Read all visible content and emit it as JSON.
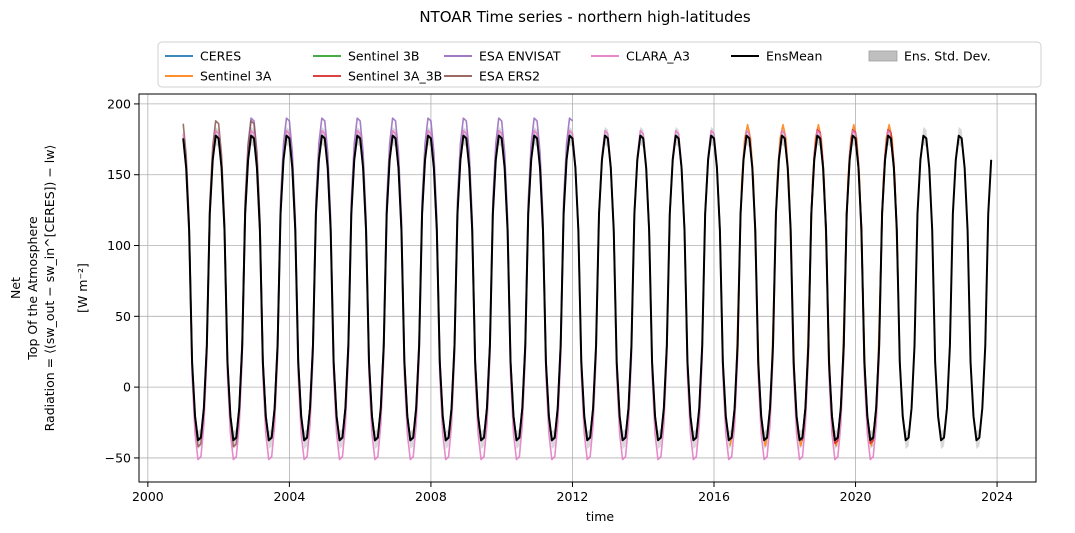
{
  "chart_data": {
    "type": "line",
    "title": "NTOAR Time series - northern high-latitudes",
    "xlabel": "time",
    "ylabel_lines": [
      "Net",
      "Top Of the Atmosphere",
      "Radiation = ⟨(sw_out − sw_in^[CERES]) − lw⟩",
      "[W m⁻²]"
    ],
    "xlim": [
      1999.75,
      2025.1
    ],
    "ylim": [
      -67,
      207
    ],
    "x_ticks": [
      2000,
      2004,
      2008,
      2012,
      2016,
      2020,
      2024
    ],
    "x_tick_labels": [
      "2000",
      "2004",
      "2008",
      "2012",
      "2016",
      "2020",
      "2024"
    ],
    "y_ticks": [
      -50,
      0,
      50,
      100,
      150,
      200
    ],
    "y_tick_labels": [
      "−50",
      "0",
      "50",
      "100",
      "150",
      "200"
    ],
    "grid": true,
    "legend_position": "top-center",
    "legend_columns": 6,
    "model": {
      "description": "Monthly seasonal cycle, peak ~Dec, trough ~Jun",
      "start_year": 2001.0,
      "end_year": 2023.9,
      "phase_year": 2000.95,
      "mean_value": 70,
      "amplitude_value": 109,
      "shape_exponent": 1.6
    },
    "series": [
      {
        "name": "CERES",
        "color": "#1f77b4",
        "start": 2001.0,
        "end": 2021.45,
        "offset": 0.5,
        "amp_scale": 1.0
      },
      {
        "name": "Sentinel 3A",
        "color": "#ff7f0e",
        "start": 2016.45,
        "end": 2021.2,
        "offset": 2,
        "amp_scale": 1.04
      },
      {
        "name": "Sentinel 3B",
        "color": "#2ca02c",
        "start": 2018.5,
        "end": 2021.2,
        "offset": 0,
        "amp_scale": 1.0
      },
      {
        "name": "Sentinel 3A_3B",
        "color": "#d62728",
        "start": 2018.5,
        "end": 2021.2,
        "offset": 1,
        "amp_scale": 1.03
      },
      {
        "name": "ESA ENVISAT",
        "color": "#9467bd",
        "start": 2002.5,
        "end": 2012.0,
        "offset": 6,
        "amp_scale": 1.06
      },
      {
        "name": "ESA ERS2",
        "color": "#8c564b",
        "start": 2001.0,
        "end": 2003.4,
        "offset": 3,
        "amp_scale": 1.07
      },
      {
        "name": "CLARA_A3",
        "color": "#e377c2",
        "start": 2001.0,
        "end": 2021.0,
        "offset": -5,
        "amp_scale": 1.08
      },
      {
        "name": "EnsMean",
        "color": "#000000",
        "start": 2001.0,
        "end": 2023.9,
        "offset": 0,
        "amp_scale": 1.0
      }
    ],
    "legend": [
      {
        "label": "CERES",
        "color": "#1f77b4",
        "kind": "line"
      },
      {
        "label": "Sentinel 3A",
        "color": "#ff7f0e",
        "kind": "line"
      },
      {
        "label": "Sentinel 3B",
        "color": "#2ca02c",
        "kind": "line"
      },
      {
        "label": "Sentinel 3A_3B",
        "color": "#d62728",
        "kind": "line"
      },
      {
        "label": "ESA ENVISAT",
        "color": "#9467bd",
        "kind": "line"
      },
      {
        "label": "ESA ERS2",
        "color": "#8c564b",
        "kind": "line"
      },
      {
        "label": "CLARA_A3",
        "color": "#e377c2",
        "kind": "line"
      },
      {
        "label": "EnsMean",
        "color": "#000000",
        "kind": "line"
      },
      {
        "label": "Ens. Std. Dev.",
        "color": "#bfbfbf",
        "kind": "patch"
      }
    ]
  }
}
